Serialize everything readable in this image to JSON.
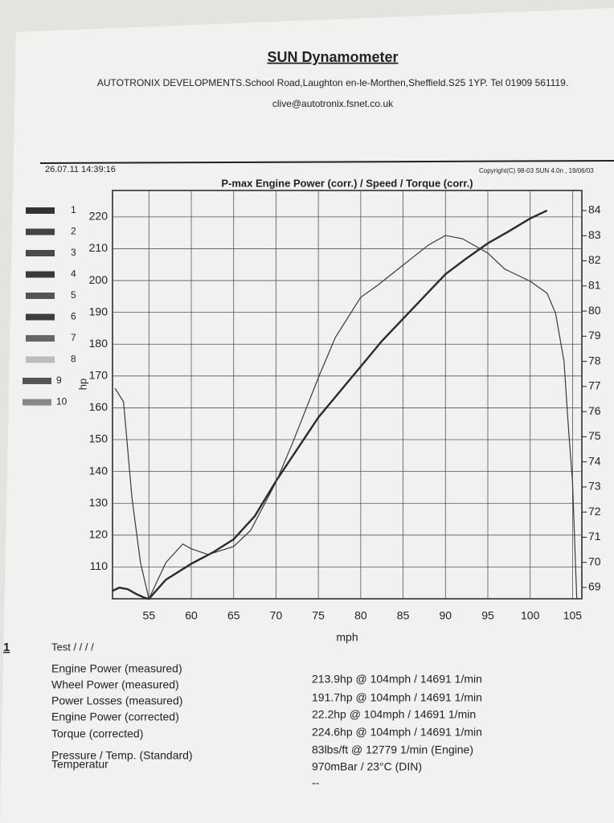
{
  "header": {
    "title": "SUN Dynamometer",
    "address": "AUTOTRONIX DEVELOPMENTS.School Road,Laughton en-le-Morthen,Sheffield.S25 1YP. Tel 01909 561119.",
    "email": "clive@autotronix.fsnet.co.uk",
    "date": "26.07.11 14:39:16",
    "copyright": "Copyright(C) 98-03 SUN 4.0n , 19/06/03"
  },
  "chart_data": {
    "type": "line",
    "title": "P-max Engine Power  (corr.) / Speed / Torque (corr.)",
    "xlabel": "mph",
    "ylabel": "hp",
    "xlim": [
      50.7,
      106.1
    ],
    "xticks": [
      55,
      60,
      65,
      70,
      75,
      80,
      85,
      90,
      95,
      100,
      105
    ],
    "ylim": [
      100,
      228.3
    ],
    "yticks": [
      110,
      120,
      130,
      140,
      150,
      160,
      170,
      180,
      190,
      200,
      210,
      220
    ],
    "y2lim": [
      68.55,
      84.8
    ],
    "y2ticks": [
      69,
      70,
      71,
      72,
      73,
      74,
      75,
      76,
      77,
      78,
      79,
      80,
      81,
      82,
      83,
      84
    ],
    "grid": true,
    "series": [
      {
        "color": "#2a2a2a",
        "x": [
          50.7,
          51.5,
          52.5,
          53.5,
          54.5,
          55,
          57,
          60,
          62.5,
          65,
          67.5,
          70,
          72.5,
          75,
          77.5,
          80,
          82.5,
          85,
          87.5,
          90,
          92.5,
          95,
          97.5,
          100,
          102
        ],
        "values": [
          102.5,
          103.5,
          103,
          101.5,
          100.3,
          100,
          106,
          111,
          114.5,
          118.7,
          126,
          137,
          147,
          157,
          165,
          173,
          181,
          188,
          195,
          202,
          207,
          211.7,
          215.5,
          219.5,
          222
        ]
      },
      {
        "color": "#3a3a3a",
        "axis": "y2",
        "x": [
          51,
          52,
          53,
          54,
          55,
          57,
          59,
          60,
          62,
          65,
          67,
          70,
          72,
          75,
          77,
          80,
          82,
          85,
          88,
          90,
          92,
          95,
          97,
          100,
          102,
          103,
          104,
          104.5,
          105,
          105.5
        ],
        "values": [
          76.93,
          76.39,
          72.55,
          69.99,
          68.55,
          69.99,
          70.73,
          70.54,
          70.31,
          70.63,
          71.27,
          73.19,
          74.79,
          77.35,
          78.95,
          80.55,
          81.03,
          81.83,
          82.63,
          83.01,
          82.88,
          82.31,
          81.67,
          81.19,
          80.71,
          79.91,
          77.99,
          75.43,
          73.19,
          68.55
        ]
      }
    ],
    "legend": [
      {
        "label": "1",
        "color": "#333"
      },
      {
        "label": "2",
        "color": "#444"
      },
      {
        "label": "3",
        "color": "#4a4a4a"
      },
      {
        "label": "4",
        "color": "#3a3a3a"
      },
      {
        "label": "5",
        "color": "#555"
      },
      {
        "label": "6",
        "color": "#3d3d3d"
      },
      {
        "label": "7",
        "color": "#666"
      },
      {
        "label": "8",
        "color": "#bbb"
      },
      {
        "label": "9",
        "color": "#555"
      },
      {
        "label": "10",
        "color": "#888"
      }
    ]
  },
  "results": {
    "test_no": "1",
    "test": "Test / / / /",
    "labels": [
      "Engine Power (measured)",
      "Wheel Power (measured)",
      "Power Losses (measured)",
      "Engine Power (corrected)",
      "Torque (corrected)",
      "Pressure / Temp. (Standard)",
      "Temperatur"
    ],
    "values": [
      "213.9hp @ 104mph / 14691 1/min",
      "191.7hp @ 104mph / 14691 1/min",
      "22.2hp @ 104mph / 14691 1/min",
      "224.6hp @ 104mph / 14691 1/min",
      "83lbs/ft @ 12779 1/min (Engine)",
      "970mBar / 23°C (DIN)",
      "--"
    ]
  }
}
